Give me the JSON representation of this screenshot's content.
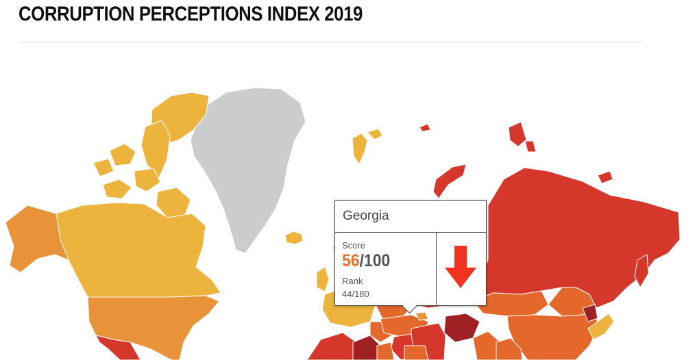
{
  "header": {
    "title": "CORRUPTION PERCEPTIONS INDEX 2019"
  },
  "tooltip": {
    "country": "Georgia",
    "score_label": "Score",
    "score_value": "56",
    "score_max": "/100",
    "rank_label": "Rank",
    "rank": "44/180",
    "trend": "down-arrow-icon",
    "trend_color": "#f0321e"
  },
  "palette": {
    "no_data": "#cccccc",
    "high": "#ecb33d",
    "mid_high": "#e8923a",
    "mid": "#e4672c",
    "low": "#d5382b",
    "very_low": "#9f2124"
  }
}
